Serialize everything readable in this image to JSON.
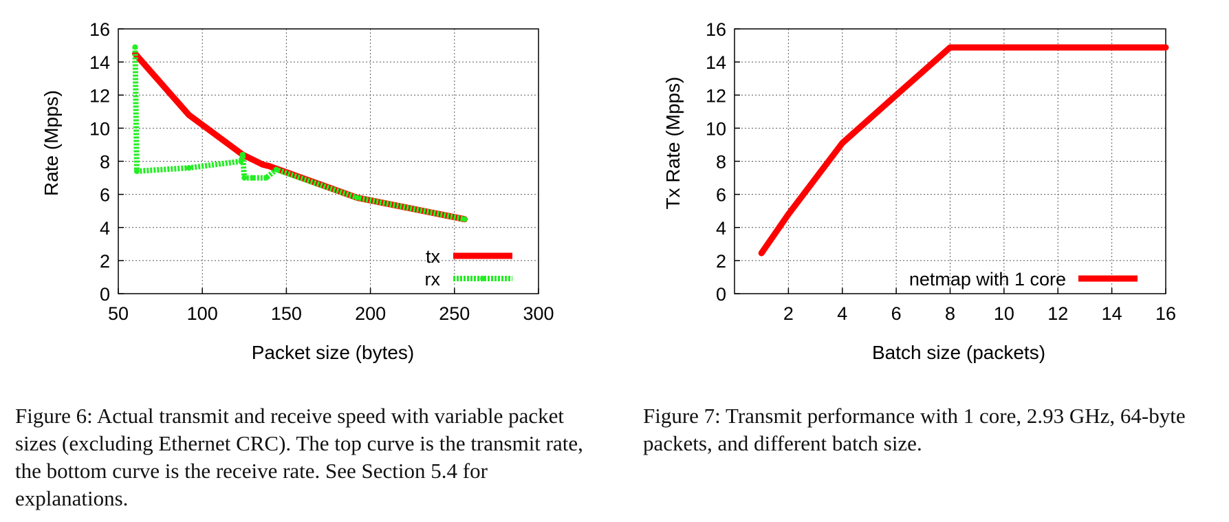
{
  "chart_data": [
    {
      "type": "line",
      "xlabel": "Packet size (bytes)",
      "ylabel": "Rate (Mpps)",
      "xlim": [
        50,
        300
      ],
      "ylim": [
        0,
        16
      ],
      "xticks": [
        50,
        100,
        150,
        200,
        250,
        300
      ],
      "yticks": [
        0,
        2,
        4,
        6,
        8,
        10,
        12,
        14,
        16
      ],
      "grid": true,
      "legend_position": "bottom-right",
      "series": [
        {
          "name": "tx",
          "color": "#ff0000",
          "style": "solid",
          "x": [
            60,
            92,
            124,
            136,
            140,
            192,
            256
          ],
          "y": [
            14.5,
            10.8,
            8.4,
            7.8,
            7.7,
            5.8,
            4.5
          ]
        },
        {
          "name": "rx",
          "color": "#22ee22",
          "style": "dotted",
          "x": [
            60,
            61,
            92,
            123,
            124,
            125,
            130,
            138,
            144,
            192,
            256
          ],
          "y": [
            14.9,
            7.4,
            7.6,
            8.0,
            8.4,
            7.0,
            7.0,
            7.0,
            7.5,
            5.8,
            4.5
          ]
        }
      ]
    },
    {
      "type": "line",
      "xlabel": "Batch size (packets)",
      "ylabel": "Tx Rate (Mpps)",
      "xlim": [
        0,
        16
      ],
      "ylim": [
        0,
        16
      ],
      "xticks": [
        2,
        4,
        6,
        8,
        10,
        12,
        14,
        16
      ],
      "yticks": [
        0,
        2,
        4,
        6,
        8,
        10,
        12,
        14,
        16
      ],
      "grid": true,
      "legend_position": "bottom-right",
      "series": [
        {
          "name": "netmap with 1 core",
          "color": "#ff0000",
          "style": "solid",
          "x": [
            1,
            2,
            4,
            6,
            8,
            16
          ],
          "y": [
            2.45,
            4.8,
            9.1,
            12.0,
            14.88,
            14.88
          ]
        }
      ]
    }
  ],
  "captions": {
    "fig6": "Figure 6: Actual transmit and receive speed with variable packet sizes (excluding Ethernet CRC). The top curve is the transmit rate, the bottom curve is the receive rate. See Section 5.4 for explanations.",
    "fig7": "Figure 7: Transmit performance with 1 core, 2.93 GHz, 64-byte packets, and different batch size."
  }
}
